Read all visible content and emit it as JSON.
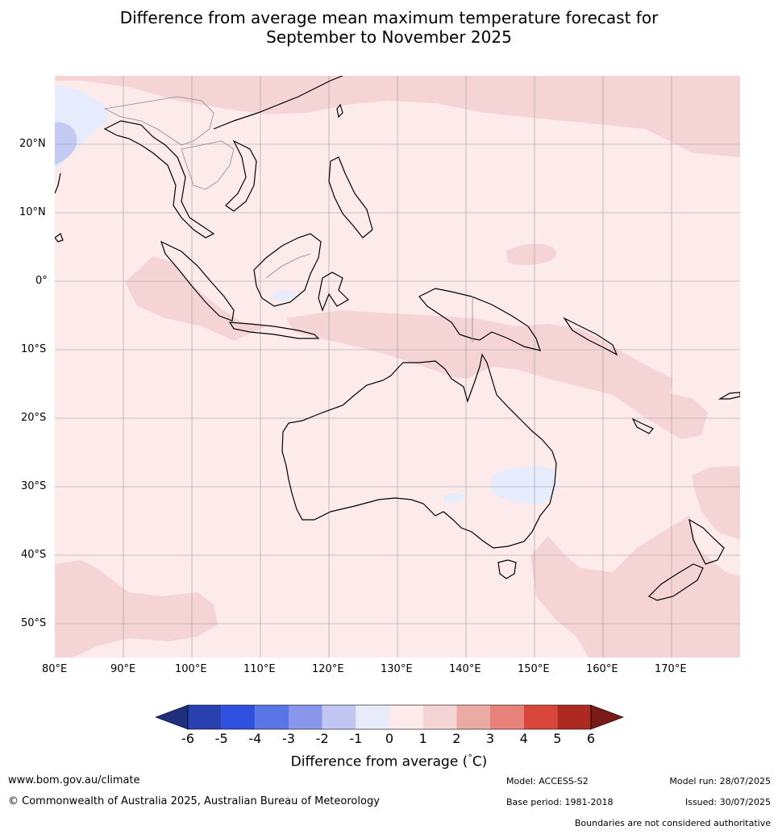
{
  "title": {
    "line1": "Difference from average mean maximum temperature forecast for",
    "line2": "September to November 2025"
  },
  "map": {
    "lat_labels": [
      "20°N",
      "10°N",
      "0°",
      "10°S",
      "20°S",
      "30°S",
      "40°S",
      "50°S"
    ],
    "lon_labels": [
      "80°E",
      "90°E",
      "100°E",
      "110°E",
      "120°E",
      "130°E",
      "140°E",
      "150°E",
      "160°E",
      "170°E"
    ],
    "base_color": "#fcebea",
    "warm1_color": "#f4d4d4",
    "cool_light_color": "#e6ecfb",
    "cool_mid_color": "#c3cbf2",
    "coast_color": "#000000",
    "border_color": "#8a8a8a"
  },
  "colorbar": {
    "ticks": [
      "-6",
      "-5",
      "-4",
      "-3",
      "-2",
      "-1",
      "0",
      "1",
      "2",
      "3",
      "4",
      "5",
      "6"
    ],
    "colors": [
      "#1f2f7c",
      "#2840b0",
      "#3050e0",
      "#5a75e6",
      "#8897ec",
      "#c1c7f2",
      "#e8ebfa",
      "#fcebea",
      "#f4d4d4",
      "#ecaaa4",
      "#e8837b",
      "#d9473c",
      "#ac2a21",
      "#7a1a16"
    ],
    "label": "Difference from average (°C)",
    "label_pre": "Difference from average (",
    "label_deg": "°",
    "label_post": "C)"
  },
  "footer": {
    "website": "www.bom.gov.au/climate",
    "copyright": "© Commonwealth of Australia 2025, Australian Bureau of Meteorology",
    "model": "Model: ACCESS-S2",
    "base_period": "Base period: 1981-2018",
    "model_run": "Model run: 28/07/2025",
    "issued": "Issued: 30/07/2025",
    "disclaimer": "Boundaries are not considered authoritative"
  }
}
